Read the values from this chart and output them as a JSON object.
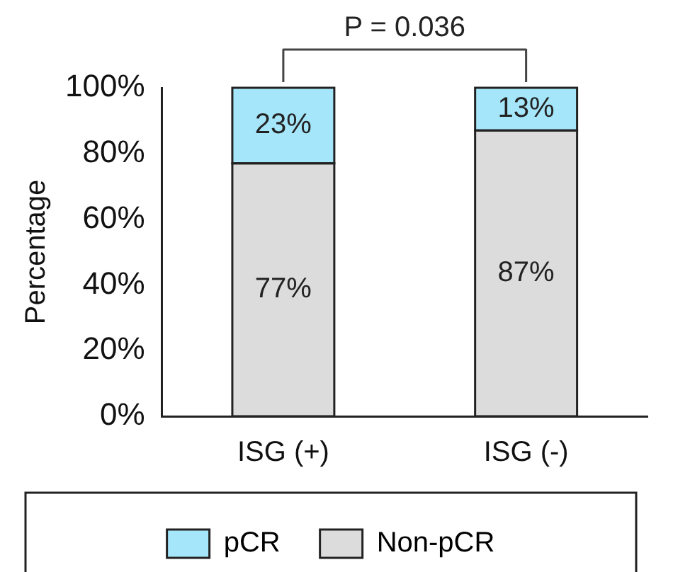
{
  "chart_data": {
    "type": "bar",
    "stacked": true,
    "ylabel": "Percentage",
    "categories": [
      "ISG (+)",
      "ISG (-)"
    ],
    "series": [
      {
        "name": "Non-pCR",
        "color": "#dcdcdc",
        "values": [
          77,
          87
        ],
        "value_labels": [
          "77%",
          "87%"
        ]
      },
      {
        "name": "pCR",
        "color": "#a6e6fa",
        "values": [
          23,
          13
        ],
        "value_labels": [
          "23%",
          "13%"
        ]
      }
    ],
    "ylim": [
      0,
      100
    ],
    "yticks": [
      {
        "value": 0,
        "label": "0%"
      },
      {
        "value": 20,
        "label": "20%"
      },
      {
        "value": 40,
        "label": "40%"
      },
      {
        "value": 60,
        "label": "60%"
      },
      {
        "value": 80,
        "label": "80%"
      },
      {
        "value": 100,
        "label": "100%"
      }
    ],
    "annotations": [
      "P = 0.036"
    ],
    "grid": false,
    "legend": "bottom"
  }
}
